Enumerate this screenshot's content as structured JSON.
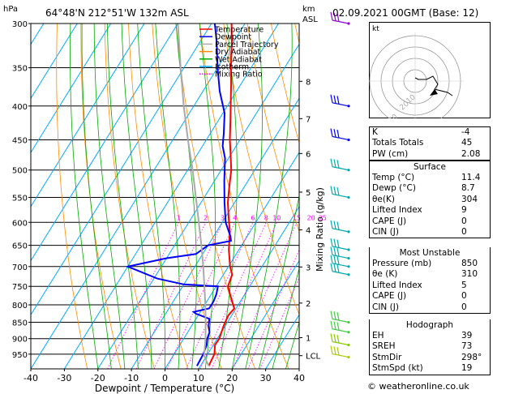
{
  "header": {
    "location": "64°48'N  212°51'W  132m  ASL",
    "datetime": "02.09.2021  00GMT  (Base: 12)",
    "hpa_label": "hPa",
    "km_label": "km",
    "asl_label": "ASL"
  },
  "legend": [
    {
      "label": "Temperature",
      "color": "#ff0000"
    },
    {
      "label": "Dewpoint",
      "color": "#0000ff"
    },
    {
      "label": "Parcel Trajectory",
      "color": "#aaaaaa"
    },
    {
      "label": "Dry Adiabat",
      "color": "#ff8c00"
    },
    {
      "label": "Wet Adiabat",
      "color": "#00aa00"
    },
    {
      "label": "Isotherm",
      "color": "#00aaff"
    },
    {
      "label": "Mixing Ratio",
      "color": "#ff00ff"
    }
  ],
  "chart_data": {
    "type": "line",
    "xlabel": "Dewpoint / Temperature (°C)",
    "ylabel": "hPa",
    "mixing_ratio_axis_label": "Mixing Ratio (g/kg)",
    "x_ticks": [
      "-40",
      "-30",
      "-20",
      "-10",
      "0",
      "10",
      "20",
      "30",
      "40"
    ],
    "y_ticks": [
      "300",
      "350",
      "400",
      "450",
      "500",
      "550",
      "600",
      "650",
      "700",
      "750",
      "800",
      "850",
      "900",
      "950"
    ],
    "km_ticks": [
      {
        "p": 367,
        "label": "8"
      },
      {
        "p": 418,
        "label": "7"
      },
      {
        "p": 472,
        "label": "6"
      },
      {
        "p": 540,
        "label": "5"
      },
      {
        "p": 616,
        "label": "4"
      },
      {
        "p": 701,
        "label": "3"
      },
      {
        "p": 795,
        "label": "2"
      },
      {
        "p": 897,
        "label": "1"
      },
      {
        "p": 955,
        "label": "LCL"
      }
    ],
    "mixing_ratio_labels": [
      {
        "w": 1,
        "label": "1"
      },
      {
        "w": 2,
        "label": "2"
      },
      {
        "w": 3,
        "label": "3"
      },
      {
        "w": 4,
        "label": "4"
      },
      {
        "w": 6,
        "label": "6"
      },
      {
        "w": 8,
        "label": "8"
      },
      {
        "w": 10,
        "label": "10"
      },
      {
        "w": 15,
        "label": "15"
      },
      {
        "w": 20,
        "label": "20"
      },
      {
        "w": 25,
        "label": "25"
      }
    ],
    "series": [
      {
        "name": "Temperature",
        "points": [
          {
            "p": 990,
            "t": 12.5
          },
          {
            "p": 950,
            "t": 12.0
          },
          {
            "p": 920,
            "t": 10.5
          },
          {
            "p": 900,
            "t": 10.6
          },
          {
            "p": 860,
            "t": 9.5
          },
          {
            "p": 830,
            "t": 9.0
          },
          {
            "p": 810,
            "t": 9.5
          },
          {
            "p": 780,
            "t": 6.5
          },
          {
            "p": 750,
            "t": 3.5
          },
          {
            "p": 720,
            "t": 2.6
          },
          {
            "p": 700,
            "t": 0.5
          },
          {
            "p": 660,
            "t": -3.0
          },
          {
            "p": 620,
            "t": -6.0
          },
          {
            "p": 590,
            "t": -9.0
          },
          {
            "p": 560,
            "t": -12.0
          },
          {
            "p": 530,
            "t": -14.5
          },
          {
            "p": 500,
            "t": -17.0
          },
          {
            "p": 470,
            "t": -20.5
          },
          {
            "p": 450,
            "t": -23.0
          },
          {
            "p": 420,
            "t": -26.5
          },
          {
            "p": 400,
            "t": -29.0
          },
          {
            "p": 370,
            "t": -33.0
          },
          {
            "p": 350,
            "t": -36.0
          },
          {
            "p": 320,
            "t": -40.5
          },
          {
            "p": 300,
            "t": -44.0
          }
        ]
      },
      {
        "name": "Dewpoint",
        "points": [
          {
            "p": 990,
            "t": 9.0
          },
          {
            "p": 950,
            "t": 8.7
          },
          {
            "p": 920,
            "t": 8.0
          },
          {
            "p": 900,
            "t": 7.0
          },
          {
            "p": 880,
            "t": 6.5
          },
          {
            "p": 860,
            "t": 5.0
          },
          {
            "p": 840,
            "t": 4.0
          },
          {
            "p": 825,
            "t": -1.0
          },
          {
            "p": 820,
            "t": -2.0
          },
          {
            "p": 810,
            "t": 2.0
          },
          {
            "p": 790,
            "t": 2.0
          },
          {
            "p": 770,
            "t": 1.5
          },
          {
            "p": 750,
            "t": 0.5
          },
          {
            "p": 745,
            "t": -10.0
          },
          {
            "p": 730,
            "t": -19.0
          },
          {
            "p": 700,
            "t": -30.0
          },
          {
            "p": 680,
            "t": -20.0
          },
          {
            "p": 670,
            "t": -12.0
          },
          {
            "p": 650,
            "t": -10.0
          },
          {
            "p": 640,
            "t": -4.0
          },
          {
            "p": 630,
            "t": -5.0
          },
          {
            "p": 600,
            "t": -9.0
          },
          {
            "p": 560,
            "t": -13.0
          },
          {
            "p": 520,
            "t": -17.0
          },
          {
            "p": 480,
            "t": -21.0
          },
          {
            "p": 460,
            "t": -24.0
          },
          {
            "p": 440,
            "t": -26.0
          },
          {
            "p": 410,
            "t": -29.5
          },
          {
            "p": 380,
            "t": -35.0
          },
          {
            "p": 350,
            "t": -40.0
          },
          {
            "p": 320,
            "t": -45.0
          },
          {
            "p": 300,
            "t": -49.0
          }
        ]
      },
      {
        "name": "Parcel Trajectory",
        "points": [
          {
            "p": 990,
            "t": 12.5
          },
          {
            "p": 955,
            "t": 9.2
          },
          {
            "p": 900,
            "t": 6.5
          },
          {
            "p": 850,
            "t": 3.5
          },
          {
            "p": 800,
            "t": 0.2
          },
          {
            "p": 750,
            "t": -3.5
          },
          {
            "p": 700,
            "t": -7.5
          },
          {
            "p": 650,
            "t": -12.0
          },
          {
            "p": 600,
            "t": -17.0
          },
          {
            "p": 550,
            "t": -22.5
          },
          {
            "p": 500,
            "t": -28.5
          },
          {
            "p": 450,
            "t": -35.5
          },
          {
            "p": 400,
            "t": -43.0
          },
          {
            "p": 350,
            "t": -51.0
          },
          {
            "p": 300,
            "t": -60.0
          }
        ]
      }
    ],
    "wind_barbs": [
      {
        "p": 300,
        "color": "#9400d3"
      },
      {
        "p": 400,
        "color": "#0000ff"
      },
      {
        "p": 450,
        "color": "#0000ff"
      },
      {
        "p": 500,
        "color": "#00aaaa"
      },
      {
        "p": 550,
        "color": "#00aaaa"
      },
      {
        "p": 620,
        "color": "#00aaaa"
      },
      {
        "p": 660,
        "color": "#00aaaa"
      },
      {
        "p": 680,
        "color": "#00aaaa"
      },
      {
        "p": 700,
        "color": "#00aaaa"
      },
      {
        "p": 720,
        "color": "#00aaaa"
      },
      {
        "p": 850,
        "color": "#44cc44"
      },
      {
        "p": 880,
        "color": "#44cc44"
      },
      {
        "p": 920,
        "color": "#88cc00"
      },
      {
        "p": 960,
        "color": "#aacc00"
      }
    ]
  },
  "hodograph": {
    "unit_label": "kt",
    "ring_labels": [
      "10",
      "20",
      "40"
    ]
  },
  "indices": [
    {
      "label": "K",
      "value": "-4"
    },
    {
      "label": "Totals Totals",
      "value": "45"
    },
    {
      "label": "PW (cm)",
      "value": "2.08"
    }
  ],
  "surface": {
    "title": "Surface",
    "rows": [
      {
        "label": "Temp (°C)",
        "value": "11.4"
      },
      {
        "label": "Dewp (°C)",
        "value": "8.7"
      },
      {
        "label": "θe(K)",
        "value": "304"
      },
      {
        "label": "Lifted Index",
        "value": "9"
      },
      {
        "label": "CAPE (J)",
        "value": "0"
      },
      {
        "label": "CIN (J)",
        "value": "0"
      }
    ]
  },
  "most_unstable": {
    "title": "Most Unstable",
    "rows": [
      {
        "label": "Pressure (mb)",
        "value": "850"
      },
      {
        "label": "θe (K)",
        "value": "310"
      },
      {
        "label": "Lifted Index",
        "value": "5"
      },
      {
        "label": "CAPE (J)",
        "value": "0"
      },
      {
        "label": "CIN (J)",
        "value": "0"
      }
    ]
  },
  "hodograph_table": {
    "title": "Hodograph",
    "rows": [
      {
        "label": "EH",
        "value": "39"
      },
      {
        "label": "SREH",
        "value": "73"
      },
      {
        "label": "StmDir",
        "value": "298°"
      },
      {
        "label": "StmSpd (kt)",
        "value": "19"
      }
    ]
  },
  "footer": "© weatheronline.co.uk"
}
